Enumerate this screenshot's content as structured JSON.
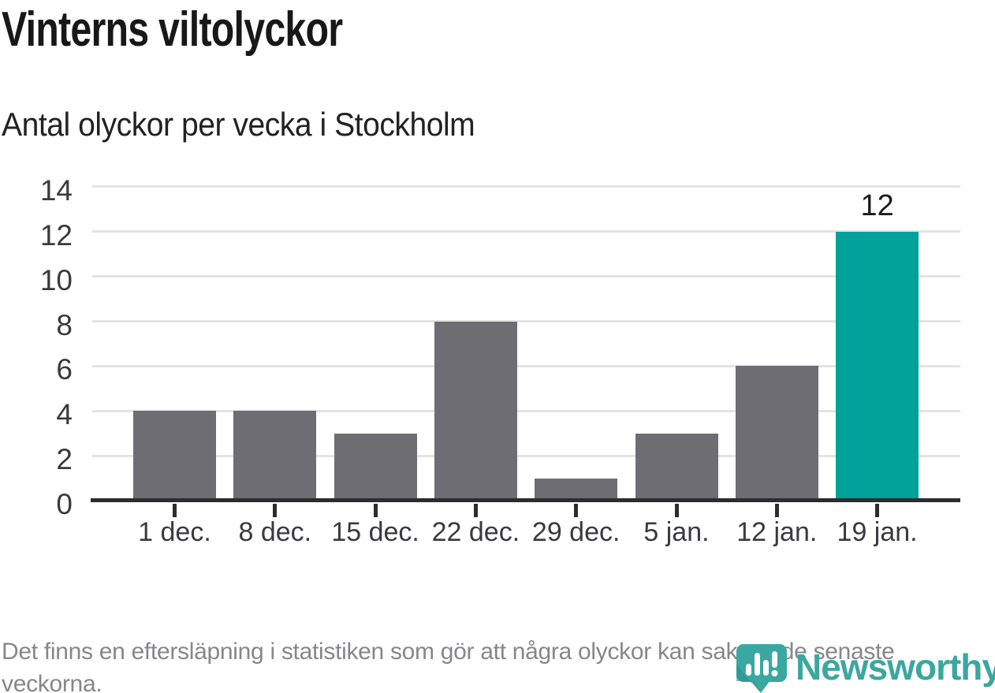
{
  "header": {
    "title": "Vinterns viltolyckor",
    "subtitle": "Antal olyckor per vecka i Stockholm"
  },
  "chart_data": {
    "type": "bar",
    "categories": [
      "1 dec.",
      "8 dec.",
      "15 dec.",
      "22 dec.",
      "29 dec.",
      "5 jan.",
      "12 jan.",
      "19 jan."
    ],
    "values": [
      4,
      4,
      3,
      8,
      1,
      3,
      6,
      12
    ],
    "data_labels": [
      null,
      null,
      null,
      null,
      null,
      null,
      null,
      "12"
    ],
    "highlight_index": 7,
    "title": "Vinterns viltolyckor",
    "subtitle": "Antal olyckor per vecka i Stockholm",
    "xlabel": "",
    "ylabel": "",
    "ylim": [
      0,
      14
    ],
    "yticks": [
      0,
      2,
      4,
      6,
      8,
      10,
      12,
      14
    ],
    "grid": "horizontal-only",
    "legend": "none",
    "colors": {
      "bar": "#6e6d74",
      "highlight": "#00a29a",
      "gridline": "#e3e3e3",
      "axis": "#2d2d2d",
      "tick_text": "#3a3a3e",
      "value_label": "#1b1b1b"
    }
  },
  "footer": {
    "note": "Det finns en eftersläpning i statistiken som gör att några olyckor kan saknas de senaste veckorna."
  },
  "branding": {
    "logo_text": "Newsworthy",
    "logo_icon": "newsworthy-pin-bar-chart-icon",
    "logo_color": "#3ba79f",
    "logo_icon_accent": "#2a8c89"
  }
}
